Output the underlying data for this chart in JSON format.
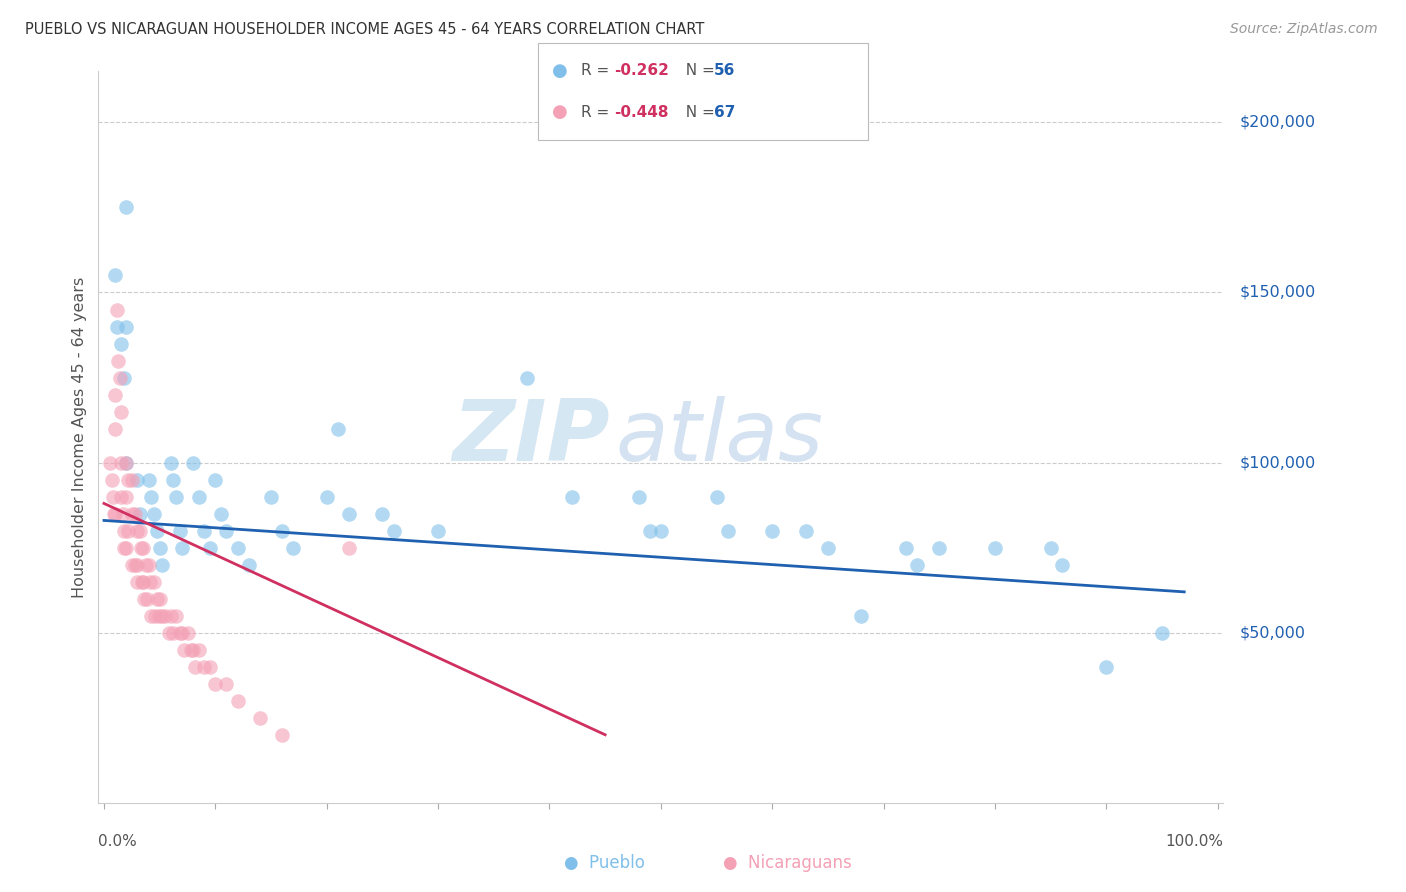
{
  "title": "PUEBLO VS NICARAGUAN HOUSEHOLDER INCOME AGES 45 - 64 YEARS CORRELATION CHART",
  "source": "Source: ZipAtlas.com",
  "ylabel": "Householder Income Ages 45 - 64 years",
  "pueblo_color": "#7fbfea",
  "nicaraguan_color": "#f4a0b5",
  "trendline1_color": "#2060b0",
  "trendline2_color": "#d03060",
  "r_color": "#d03060",
  "n_color": "#2060b0",
  "ytick_values": [
    50000,
    100000,
    150000,
    200000
  ],
  "ylim": [
    0,
    215000
  ],
  "xlim": [
    -0.005,
    1.005
  ],
  "pueblo_x": [
    0.02,
    0.02,
    0.02,
    0.03,
    0.032,
    0.01,
    0.012,
    0.015,
    0.018,
    0.04,
    0.042,
    0.045,
    0.048,
    0.05,
    0.052,
    0.06,
    0.062,
    0.065,
    0.068,
    0.07,
    0.08,
    0.085,
    0.09,
    0.095,
    0.1,
    0.105,
    0.11,
    0.12,
    0.13,
    0.15,
    0.16,
    0.17,
    0.2,
    0.21,
    0.22,
    0.25,
    0.26,
    0.3,
    0.38,
    0.42,
    0.48,
    0.49,
    0.5,
    0.55,
    0.56,
    0.6,
    0.63,
    0.65,
    0.68,
    0.72,
    0.73,
    0.75,
    0.8,
    0.85,
    0.86,
    0.9,
    0.95
  ],
  "pueblo_y": [
    175000,
    140000,
    100000,
    95000,
    85000,
    155000,
    140000,
    135000,
    125000,
    95000,
    90000,
    85000,
    80000,
    75000,
    70000,
    100000,
    95000,
    90000,
    80000,
    75000,
    100000,
    90000,
    80000,
    75000,
    95000,
    85000,
    80000,
    75000,
    70000,
    90000,
    80000,
    75000,
    90000,
    110000,
    85000,
    85000,
    80000,
    80000,
    125000,
    90000,
    90000,
    80000,
    80000,
    90000,
    80000,
    80000,
    80000,
    75000,
    55000,
    75000,
    70000,
    75000,
    75000,
    75000,
    70000,
    40000,
    50000
  ],
  "nicaraguan_x": [
    0.005,
    0.007,
    0.008,
    0.009,
    0.01,
    0.01,
    0.01,
    0.012,
    0.013,
    0.014,
    0.015,
    0.015,
    0.015,
    0.017,
    0.018,
    0.018,
    0.02,
    0.02,
    0.02,
    0.022,
    0.022,
    0.025,
    0.025,
    0.025,
    0.028,
    0.028,
    0.03,
    0.03,
    0.03,
    0.032,
    0.033,
    0.034,
    0.035,
    0.035,
    0.036,
    0.038,
    0.039,
    0.04,
    0.041,
    0.042,
    0.045,
    0.046,
    0.048,
    0.049,
    0.05,
    0.052,
    0.055,
    0.058,
    0.06,
    0.062,
    0.065,
    0.068,
    0.07,
    0.072,
    0.075,
    0.078,
    0.08,
    0.082,
    0.085,
    0.09,
    0.095,
    0.1,
    0.11,
    0.12,
    0.14,
    0.16,
    0.22
  ],
  "nicaraguan_y": [
    100000,
    95000,
    90000,
    85000,
    120000,
    110000,
    85000,
    145000,
    130000,
    125000,
    115000,
    100000,
    90000,
    85000,
    80000,
    75000,
    100000,
    90000,
    75000,
    95000,
    80000,
    95000,
    85000,
    70000,
    85000,
    70000,
    80000,
    70000,
    65000,
    80000,
    75000,
    65000,
    75000,
    65000,
    60000,
    70000,
    60000,
    70000,
    65000,
    55000,
    65000,
    55000,
    60000,
    55000,
    60000,
    55000,
    55000,
    50000,
    55000,
    50000,
    55000,
    50000,
    50000,
    45000,
    50000,
    45000,
    45000,
    40000,
    45000,
    40000,
    40000,
    35000,
    35000,
    30000,
    25000,
    20000,
    75000
  ]
}
